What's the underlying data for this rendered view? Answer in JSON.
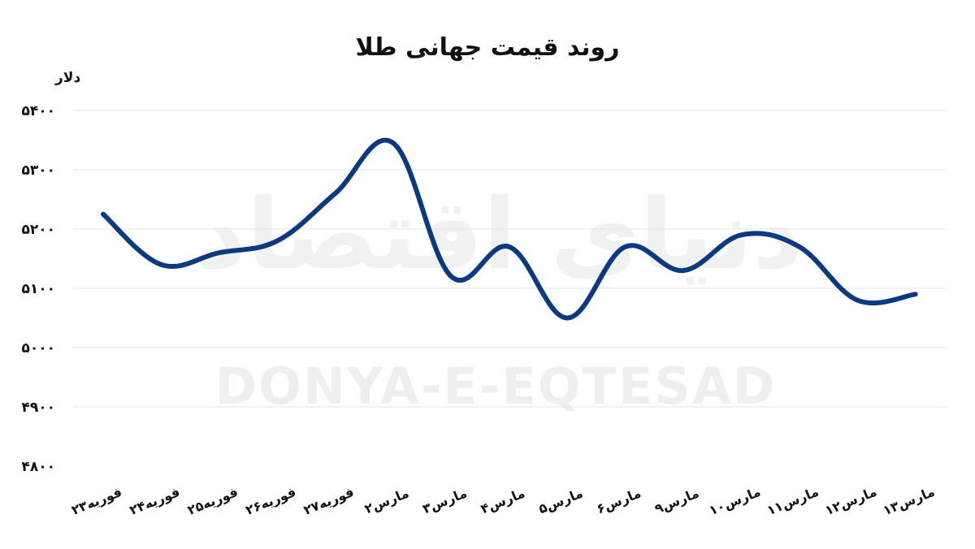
{
  "watermark": {
    "latin": "DONYA-E-EQTESAD",
    "persian": "دنیای اقتصاد"
  },
  "colors": {
    "line": "#0b3a82",
    "grid": "#e6e6e6",
    "text": "#111111"
  },
  "chart_data": {
    "type": "line",
    "title": "روند قیمت جهانی طلا",
    "ylabel": "دلار",
    "xlabel": "",
    "ylim": [
      4800,
      5400
    ],
    "yticks": [
      5400,
      5300,
      5200,
      5100,
      5000,
      4900,
      4800
    ],
    "ytick_labels": [
      "۵۴۰۰",
      "۵۳۰۰",
      "۵۲۰۰",
      "۵۱۰۰",
      "۵۰۰۰",
      "۴۹۰۰",
      "۴۸۰۰"
    ],
    "grid": true,
    "categories": [
      "۲۳فوریه",
      "۲۴فوریه",
      "۲۵فوریه",
      "۲۶فوریه",
      "۲۷فوریه",
      "۲مارس",
      "۳مارس",
      "۴مارس",
      "۵مارس",
      "۶مارس",
      "۹مارس",
      "۱۰مارس",
      "۱۱مارس",
      "۱۲مارس",
      "۱۳مارس"
    ],
    "series": [
      {
        "values": [
          5225,
          5140,
          5160,
          5180,
          5260,
          5345,
          5120,
          5170,
          5050,
          5170,
          5130,
          5190,
          5170,
          5080,
          5090
        ]
      }
    ]
  }
}
